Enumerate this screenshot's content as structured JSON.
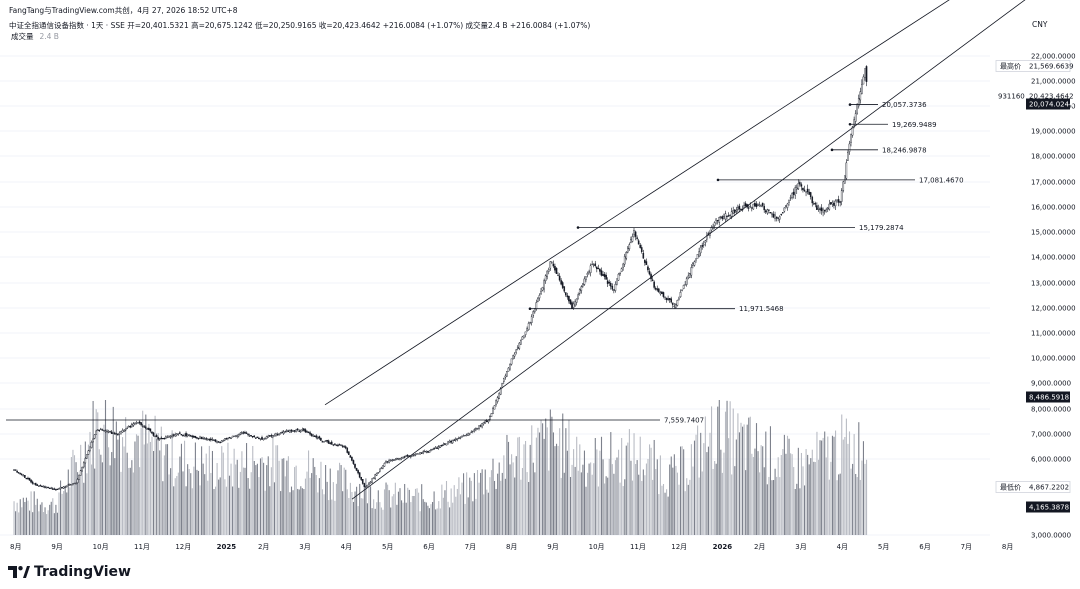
{
  "header": {
    "line1": "FangTang与TradingView.com共创，4月 27, 2026 18:52 UTC+8",
    "line2": "中证全指通信设备指数 · 1天 · SSE  开=20,401.5321  高=20,675.1242  低=20,250.9165  收=20,423.4642  +216.0084 (+1.07%)  成交量2.4 B  +216.0084 (+1.07%)",
    "volume_label": "成交量",
    "volume_value": "2.4 B"
  },
  "currency": "CNY",
  "logo_text": "TradingView",
  "chart_data": {
    "type": "candlestick",
    "title": "中证全指通信设备指数 · 1天 · SSE",
    "ohlc_latest": {
      "open": 20401.5321,
      "high": 20675.1242,
      "low": 20250.9165,
      "close": 20423.4642,
      "change": 216.0084,
      "change_pct": 1.07
    },
    "y_axis": {
      "ticks": [
        3000,
        6000,
        7000,
        8000,
        9000,
        10000,
        11000,
        12000,
        13000,
        14000,
        15000,
        16000,
        17000,
        18000,
        19000,
        20000,
        21000,
        22000
      ],
      "tick_labels": [
        "3,000.0000",
        "6,000.0000",
        "7,000.0000",
        "8,000.0000",
        "9,000.0000",
        "10,000.0000",
        "11,000.0000",
        "12,000.0000",
        "13,000.0000",
        "14,000.0000",
        "15,000.0000",
        "16,000.0000",
        "17,000.0000",
        "18,000.0000",
        "19,000.0000",
        "20,000.0000",
        "21,000.0000",
        "22,000.0000"
      ],
      "range": [
        2800,
        22300
      ]
    },
    "x_axis": {
      "tick_labels": [
        "8月",
        "9月",
        "10月",
        "11月",
        "12月",
        "2025",
        "2月",
        "3月",
        "4月",
        "5月",
        "6月",
        "7月",
        "8月",
        "9月",
        "10月",
        "11月",
        "12月",
        "2026",
        "2月",
        "3月",
        "4月",
        "5月",
        "6月",
        "7月",
        "8月"
      ]
    },
    "price_tags": [
      {
        "label": "最高价",
        "value": "21,569.6639",
        "style": "outline"
      },
      {
        "label": "931160",
        "value": "20,423.4642",
        "style": "plain"
      },
      {
        "label": "",
        "value": "20,074.0244",
        "style": "dark"
      },
      {
        "label": "",
        "value": "8,486.5918",
        "style": "dark"
      },
      {
        "label": "最低价",
        "value": "4,867.2202",
        "style": "outline"
      },
      {
        "label": "",
        "value": "4,165.3878",
        "style": "dark"
      }
    ],
    "horizontal_levels": [
      {
        "value": 7559.7407,
        "label": "7,559.7407"
      },
      {
        "value": 11971.5468,
        "label": "11,971.5468"
      },
      {
        "value": 15179.2874,
        "label": "15,179.2874"
      },
      {
        "value": 17081.467,
        "label": "17,081.4670"
      },
      {
        "value": 18246.9878,
        "label": "18,246.9878"
      },
      {
        "value": 19269.9489,
        "label": "19,269.9489"
      },
      {
        "value": 20057.3736,
        "label": "20,057.3736"
      }
    ],
    "channel": {
      "upper": [
        {
          "x": "2025-04",
          "y": 8650
        },
        {
          "x": "2026-05",
          "y": 22500
        }
      ],
      "lower": [
        {
          "x": "2025-04",
          "y": 4200
        },
        {
          "x": "2026-05",
          "y": 20000
        }
      ]
    },
    "price_path": [
      [
        "2024-08",
        5600
      ],
      [
        "2024-08",
        5000
      ],
      [
        "2024-09",
        4800
      ],
      [
        "2024-09",
        5050
      ],
      [
        "2024-10",
        7200
      ],
      [
        "2024-10",
        7000
      ],
      [
        "2024-11",
        7500
      ],
      [
        "2024-11",
        6800
      ],
      [
        "2024-12",
        7000
      ],
      [
        "2025-01",
        6700
      ],
      [
        "2025-01",
        7050
      ],
      [
        "2025-02",
        6800
      ],
      [
        "2025-02",
        7100
      ],
      [
        "2025-03",
        7150
      ],
      [
        "2025-03",
        6700
      ],
      [
        "2025-04",
        6500
      ],
      [
        "2025-04",
        4850
      ],
      [
        "2025-05",
        5900
      ],
      [
        "2025-06",
        6300
      ],
      [
        "2025-07",
        7000
      ],
      [
        "2025-07",
        7600
      ],
      [
        "2025-08",
        9800
      ],
      [
        "2025-08",
        11500
      ],
      [
        "2025-09",
        13900
      ],
      [
        "2025-09",
        12000
      ],
      [
        "2025-10",
        13800
      ],
      [
        "2025-10",
        12700
      ],
      [
        "2025-11",
        15000
      ],
      [
        "2025-11",
        12800
      ],
      [
        "2025-12",
        12100
      ],
      [
        "2025-12",
        14000
      ],
      [
        "2026-01",
        15500
      ],
      [
        "2026-01",
        15900
      ],
      [
        "2026-02",
        16100
      ],
      [
        "2026-02",
        15500
      ],
      [
        "2026-03",
        17000
      ],
      [
        "2026-03",
        15800
      ],
      [
        "2026-04",
        16300
      ],
      [
        "2026-04",
        18300
      ],
      [
        "2026-04",
        20100
      ],
      [
        "2026-04",
        21550
      ],
      [
        "2026-04",
        20420
      ]
    ],
    "volume_profile": [
      [
        "2024-08",
        0.28
      ],
      [
        "2024-09",
        0.25
      ],
      [
        "2024-10",
        0.9
      ],
      [
        "2024-11",
        0.8
      ],
      [
        "2024-12",
        0.6
      ],
      [
        "2025-01",
        0.55
      ],
      [
        "2025-02",
        0.6
      ],
      [
        "2025-03",
        0.55
      ],
      [
        "2025-04",
        0.42
      ],
      [
        "2025-05",
        0.32
      ],
      [
        "2025-06",
        0.3
      ],
      [
        "2025-07",
        0.38
      ],
      [
        "2025-08",
        0.62
      ],
      [
        "2025-09",
        0.78
      ],
      [
        "2025-10",
        0.6
      ],
      [
        "2025-11",
        0.65
      ],
      [
        "2025-12",
        0.48
      ],
      [
        "2026-01",
        0.85
      ],
      [
        "2026-02",
        0.7
      ],
      [
        "2026-03",
        0.55
      ],
      [
        "2026-04",
        0.72
      ]
    ],
    "colors": {
      "up": "#131722",
      "down": "#131722",
      "volume": "#b9bcc4",
      "volume_dark": "#7d818c",
      "line": "#131722",
      "grid": "#f0f3fa"
    }
  }
}
